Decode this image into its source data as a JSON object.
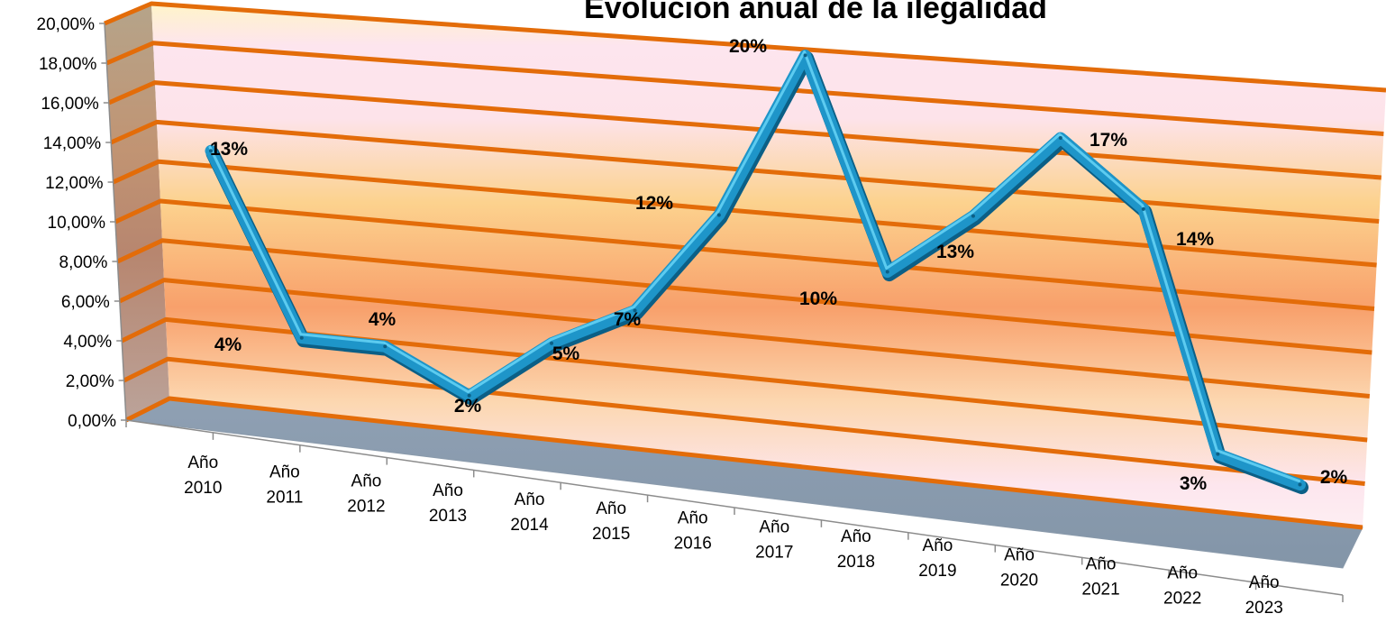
{
  "chart_data": {
    "type": "line",
    "title": "Evolución anual de la ilegalidad",
    "categories": [
      [
        "Año",
        "2010"
      ],
      [
        "Año",
        "2011"
      ],
      [
        "Año",
        "2012"
      ],
      [
        "Año",
        "2013"
      ],
      [
        "Año",
        "2014"
      ],
      [
        "Año",
        "2015"
      ],
      [
        "Año",
        "2016"
      ],
      [
        "Año",
        "2017"
      ],
      [
        "Año",
        "2018"
      ],
      [
        "Año",
        "2019"
      ],
      [
        "Año",
        "2020"
      ],
      [
        "Año",
        "2021"
      ],
      [
        "Año",
        "2022"
      ],
      [
        "Año",
        "2023"
      ]
    ],
    "values": [
      13,
      4,
      4,
      2,
      5,
      7,
      12,
      20,
      10,
      13,
      17,
      14,
      3,
      2
    ],
    "data_labels": [
      "13%",
      "4%",
      "4%",
      "2%",
      "5%",
      "7%",
      "12%",
      "20%",
      "10%",
      "13%",
      "17%",
      "14%",
      "3%",
      "2%"
    ],
    "y_ticks": [
      "0,00%",
      "2,00%",
      "4,00%",
      "6,00%",
      "8,00%",
      "10,00%",
      "12,00%",
      "14,00%",
      "16,00%",
      "18,00%",
      "20,00%"
    ],
    "ylim": [
      0,
      20
    ],
    "grid": true,
    "colors": {
      "line": "#1e95c9",
      "line_dark": "#0b5f86",
      "line_light": "#5ccbf0",
      "gridline": "#e36c09",
      "floor": "#8d9fb2",
      "side_wall": "#bfa88a",
      "wall_edge": "#ffe9b0",
      "wall_mid": "#f9a266",
      "wall_pink": "#fde4ee"
    }
  }
}
